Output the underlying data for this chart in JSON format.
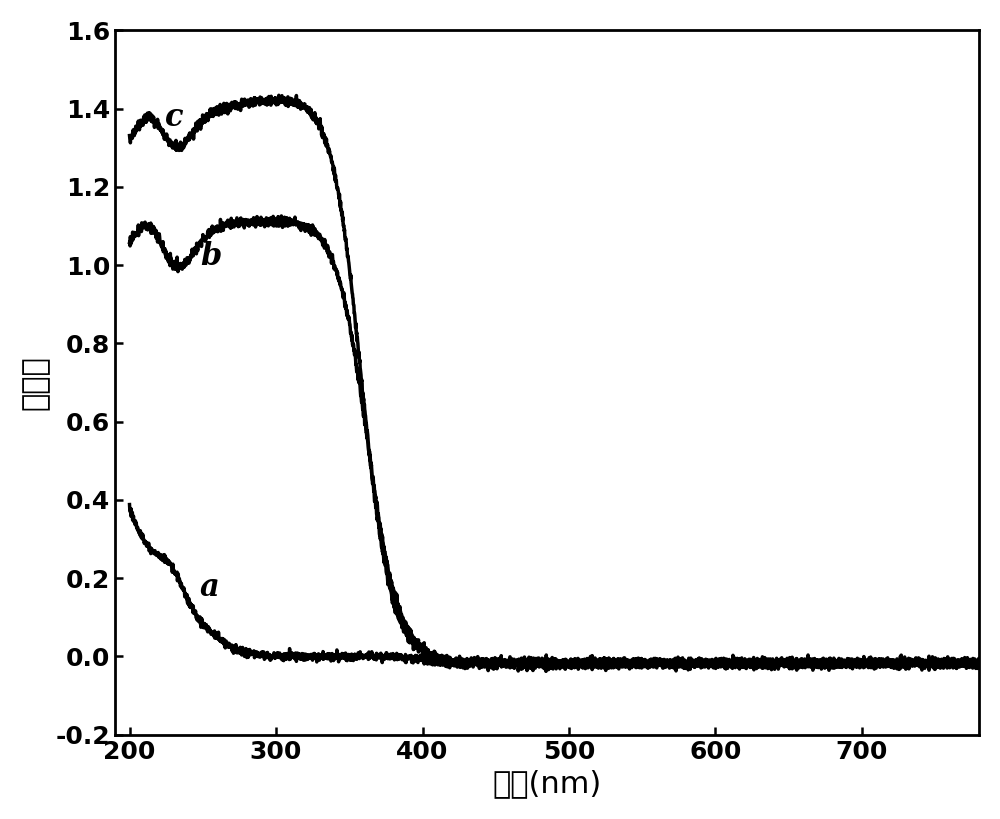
{
  "title": "",
  "xlabel": "波长(nm)",
  "ylabel": "吸收度",
  "xlim": [
    190,
    780
  ],
  "ylim": [
    -0.2,
    1.6
  ],
  "xticks": [
    200,
    300,
    400,
    500,
    600,
    700
  ],
  "yticks": [
    -0.2,
    0.0,
    0.2,
    0.4,
    0.6,
    0.8,
    1.0,
    1.2,
    1.4,
    1.6
  ],
  "line_color": "#000000",
  "line_width": 2.5,
  "label_a": "a",
  "label_b": "b",
  "label_c": "c",
  "label_fontsize": 22,
  "axis_fontsize": 22,
  "tick_fontsize": 18,
  "figsize": [
    10.0,
    8.19
  ],
  "dpi": 100
}
